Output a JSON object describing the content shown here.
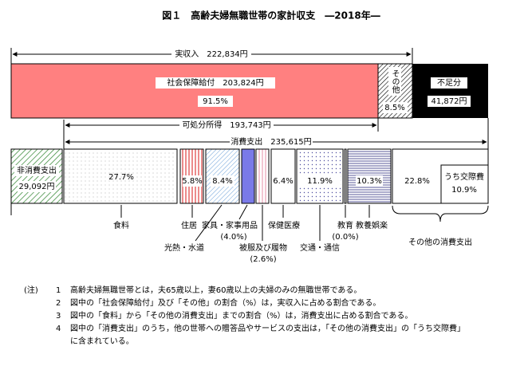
{
  "title": "図１　高齢夫婦無職世帯の家計収支　―2018年―",
  "income": {
    "label": "実収入　222,834円",
    "social": {
      "label": "社会保障給付　203,824円",
      "share": "91.5%"
    },
    "other": {
      "label": "その他",
      "share": "8.5%"
    },
    "deficit": {
      "label": "不足分",
      "amount": "41,872円"
    }
  },
  "disposable": "可処分所得　193,743円",
  "consumption": "消費支出　235,615円",
  "non_consumption": {
    "label": "非消費支出",
    "amount": "29,092円"
  },
  "segments": {
    "food": "27.7%",
    "housing": "5.8%",
    "utilities": "8.4%",
    "medical": "6.4%",
    "transport": "11.9%",
    "culture": "10.3%",
    "other": "22.8%",
    "social_label": "うち交際費",
    "social_share": "10.9%"
  },
  "labels": {
    "food": "食料",
    "housing": "住居",
    "utilities": "光熱・水道",
    "furniture": "家具・家事用品",
    "furniture_share": "(4.0%)",
    "clothing": "被服及び履物",
    "clothing_share": "(2.6%)",
    "medical": "保健医療",
    "transport": "交通・通信",
    "education": "教育",
    "education_share": "(0.0%)",
    "culture": "教養娯楽",
    "other": "その他の消費支出"
  },
  "notes": {
    "head": "(注)",
    "items": [
      {
        "num": "1",
        "lines": [
          "高齢夫婦無職世帯とは，夫65歳以上，妻60歳以上の夫婦のみの無職世帯である。"
        ]
      },
      {
        "num": "2",
        "lines": [
          "図中の「社会保障給付」及び「その他」の割合（%）は，実収入に占める割合である。"
        ]
      },
      {
        "num": "3",
        "lines": [
          "図中の「食料」から「その他の消費支出」までの割合（%）は，消費支出に占める割合である。"
        ]
      },
      {
        "num": "4",
        "lines": [
          "図中の「消費支出」のうち，他の世帯への贈答品やサービスの支出は，「その他の消費支出」の「うち交際費」",
          "に含まれている。"
        ]
      }
    ]
  }
}
